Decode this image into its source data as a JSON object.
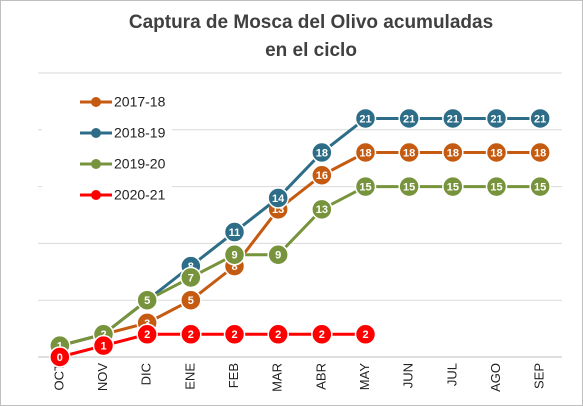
{
  "chart_data": {
    "type": "line",
    "title": [
      "Captura de Mosca del Olivo acumuladas",
      "en el ciclo"
    ],
    "categories": [
      "OCT",
      "NOV",
      "DIC",
      "ENE",
      "FEB",
      "MAR",
      "ABR",
      "MAY",
      "JUN",
      "JUL",
      "AGO",
      "SEP"
    ],
    "series": [
      {
        "name": "2017-18",
        "color": "#c55a11",
        "values": [
          1,
          2,
          3,
          5,
          8,
          13,
          16,
          18,
          18,
          18,
          18,
          18
        ]
      },
      {
        "name": "2018-19",
        "color": "#2e6d87",
        "values": [
          1,
          2,
          5,
          8,
          11,
          14,
          18,
          21,
          21,
          21,
          21,
          21
        ]
      },
      {
        "name": "2019-20",
        "color": "#77933c",
        "values": [
          1,
          2,
          5,
          7,
          9,
          9,
          13,
          15,
          15,
          15,
          15,
          15
        ]
      },
      {
        "name": "2020-21",
        "color": "#ff0000",
        "values": [
          0,
          1,
          2,
          2,
          2,
          2,
          2,
          2,
          null,
          null,
          null,
          null
        ]
      }
    ],
    "ylim": [
      0,
      25
    ],
    "yticks": [
      0,
      5,
      10,
      15,
      20,
      25
    ],
    "grid": true,
    "legend": "upper left"
  }
}
